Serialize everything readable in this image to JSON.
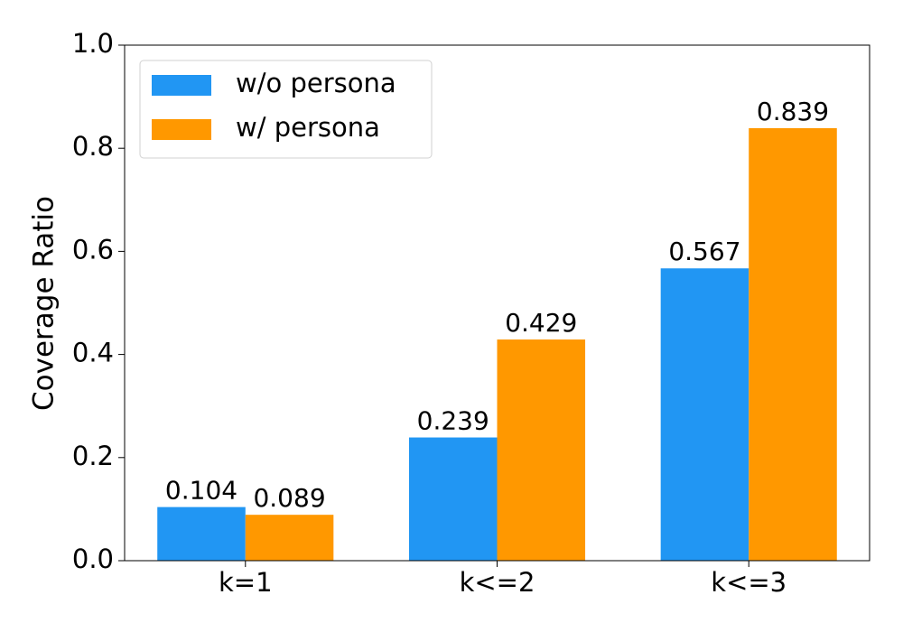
{
  "chart_data": {
    "type": "bar",
    "ylabel": "Coverage Ratio",
    "categories": [
      "k=1",
      "k<=2",
      "k<=3"
    ],
    "series": [
      {
        "name": "w/o persona",
        "color": "#2196f3",
        "values": [
          0.104,
          0.239,
          0.567
        ]
      },
      {
        "name": "w/ persona",
        "color": "#ff9800",
        "values": [
          0.089,
          0.429,
          0.839
        ]
      }
    ],
    "ylim": [
      0,
      1
    ],
    "yticks": [
      {
        "value": 0,
        "label": "0.0"
      },
      0.2,
      0.4,
      0.6,
      0.8,
      {
        "value": 1,
        "label": "1.0"
      }
    ],
    "legend": "upper left"
  }
}
